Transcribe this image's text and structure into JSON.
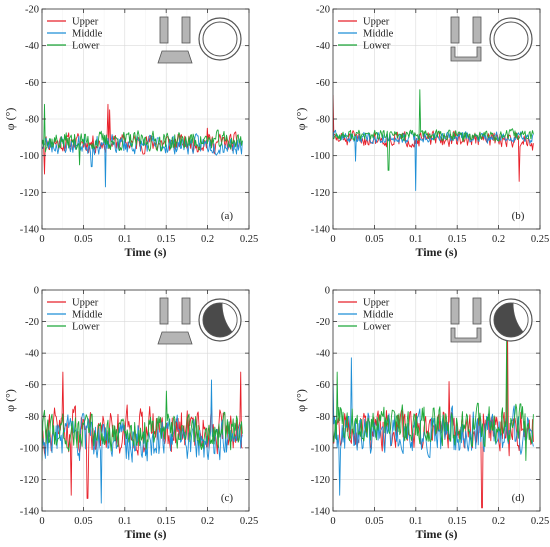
{
  "colors": {
    "upper": "#e8202a",
    "middle": "#1f8fd6",
    "lower": "#1fa83a",
    "grid": "#d9d9d9",
    "axis": "#333333",
    "icon_fill": "#b5b5b5",
    "icon_stroke": "#555555",
    "icon_dark": "#4a4a4a"
  },
  "chart_data": [
    {
      "type": "line",
      "panel_label": "(a)",
      "xlabel": "Time (s)",
      "ylabel": "φ (°)",
      "xlim": [
        0,
        0.25
      ],
      "ylim": [
        -140,
        -20
      ],
      "xticks": [
        0,
        0.05,
        0.1,
        0.15,
        0.2,
        0.25
      ],
      "xtick_labels": [
        "0",
        "0.05",
        "0.1",
        "0.15",
        "0.2",
        "0.25"
      ],
      "yticks": [
        -140,
        -120,
        -100,
        -80,
        -60,
        -40,
        -20
      ],
      "ytick_labels": [
        "-140",
        "-120",
        "-100",
        "-80",
        "-60",
        "-40",
        "-20"
      ],
      "grid": true,
      "legend_position": "top-left",
      "icon": "slots-bottom-plate-open-circle",
      "series": [
        {
          "name": "Upper",
          "key": "upper",
          "mean": -93,
          "noise": 5,
          "seed": 11,
          "spikes": [
            [
              0.08,
              -72
            ],
            [
              0.082,
              -75
            ],
            [
              0.003,
              -110
            ],
            [
              0.2,
              -85
            ]
          ]
        },
        {
          "name": "Middle",
          "key": "middle",
          "mean": -94,
          "noise": 5,
          "seed": 23,
          "spikes": [
            [
              0.077,
              -117
            ],
            [
              0.06,
              -106
            ]
          ]
        },
        {
          "name": "Lower",
          "key": "lower",
          "mean": -92,
          "noise": 5,
          "seed": 37,
          "spikes": [
            [
              0.003,
              -72
            ],
            [
              0.045,
              -105
            ]
          ]
        }
      ]
    },
    {
      "type": "line",
      "panel_label": "(b)",
      "xlabel": "Time (s)",
      "ylabel": "φ (°)",
      "xlim": [
        0,
        0.25
      ],
      "ylim": [
        -140,
        -20
      ],
      "xticks": [
        0,
        0.05,
        0.1,
        0.15,
        0.2,
        0.25
      ],
      "xtick_labels": [
        "0",
        "0.05",
        "0.1",
        "0.15",
        "0.2",
        "0.25"
      ],
      "yticks": [
        -140,
        -120,
        -100,
        -80,
        -60,
        -40,
        -20
      ],
      "ytick_labels": [
        "-140",
        "-120",
        "-100",
        "-80",
        "-60",
        "-40",
        "-20"
      ],
      "grid": true,
      "legend_position": "top-left",
      "icon": "slots-bottom-tray-open-circle",
      "series": [
        {
          "name": "Upper",
          "key": "upper",
          "mean": -91,
          "noise": 4,
          "seed": 51,
          "spikes": [
            [
              0.0,
              -67
            ],
            [
              0.225,
              -114
            ],
            [
              0.241,
              -97
            ]
          ]
        },
        {
          "name": "Middle",
          "key": "middle",
          "mean": -90,
          "noise": 3,
          "seed": 63,
          "spikes": [
            [
              0.1,
              -119
            ],
            [
              0.027,
              -103
            ]
          ]
        },
        {
          "name": "Lower",
          "key": "lower",
          "mean": -89,
          "noise": 3,
          "seed": 77,
          "spikes": [
            [
              0.105,
              -64
            ],
            [
              0.067,
              -108
            ],
            [
              0.244,
              -59
            ]
          ]
        }
      ]
    },
    {
      "type": "line",
      "panel_label": "(c)",
      "xlabel": "Time (s)",
      "ylabel": "φ (°)",
      "xlim": [
        0,
        0.25
      ],
      "ylim": [
        -140,
        0
      ],
      "xticks": [
        0,
        0.05,
        0.1,
        0.15,
        0.2,
        0.25
      ],
      "xtick_labels": [
        "0",
        "0.05",
        "0.1",
        "0.15",
        "0.2",
        "0.25"
      ],
      "yticks": [
        -140,
        -120,
        -100,
        -80,
        -60,
        -40,
        -20,
        0
      ],
      "ytick_labels": [
        "-140",
        "-120",
        "-100",
        "-80",
        "-60",
        "-40",
        "-20",
        "0"
      ],
      "grid": true,
      "legend_position": "top-left",
      "icon": "slots-bottom-plate-dark-circle",
      "series": [
        {
          "name": "Upper",
          "key": "upper",
          "mean": -88,
          "noise": 14,
          "seed": 91,
          "spikes": [
            [
              0.025,
              -52
            ],
            [
              0.035,
              -130
            ],
            [
              0.055,
              -132
            ],
            [
              0.24,
              -52
            ]
          ]
        },
        {
          "name": "Middle",
          "key": "middle",
          "mean": -95,
          "noise": 13,
          "seed": 103,
          "spikes": [
            [
              0.072,
              -135
            ],
            [
              0.205,
              -57
            ]
          ]
        },
        {
          "name": "Lower",
          "key": "lower",
          "mean": -90,
          "noise": 11,
          "seed": 117,
          "spikes": [
            [
              0.0,
              -108
            ],
            [
              0.15,
              -64
            ]
          ]
        }
      ]
    },
    {
      "type": "line",
      "panel_label": "(d)",
      "xlabel": "Time (s)",
      "ylabel": "φ (°)",
      "xlim": [
        0,
        0.25
      ],
      "ylim": [
        -140,
        0
      ],
      "xticks": [
        0,
        0.05,
        0.1,
        0.15,
        0.2,
        0.25
      ],
      "xtick_labels": [
        "0",
        "0.05",
        "0.1",
        "0.15",
        "0.2",
        "0.25"
      ],
      "yticks": [
        -140,
        -120,
        -100,
        -80,
        -60,
        -40,
        -20,
        0
      ],
      "ytick_labels": [
        "-140",
        "-120",
        "-100",
        "-80",
        "-60",
        "-40",
        "-20",
        "0"
      ],
      "grid": true,
      "legend_position": "top-left",
      "icon": "slots-bottom-tray-dark-circle",
      "series": [
        {
          "name": "Upper",
          "key": "upper",
          "mean": -88,
          "noise": 12,
          "seed": 131,
          "spikes": [
            [
              0.211,
              -22
            ],
            [
              0.213,
              -105
            ],
            [
              0.18,
              -138
            ],
            [
              0.14,
              -58
            ]
          ]
        },
        {
          "name": "Middle",
          "key": "middle",
          "mean": -90,
          "noise": 13,
          "seed": 149,
          "spikes": [
            [
              0.022,
              -43
            ],
            [
              0.0,
              -57
            ],
            [
              0.008,
              -130
            ]
          ]
        },
        {
          "name": "Lower",
          "key": "lower",
          "mean": -85,
          "noise": 12,
          "seed": 163,
          "spikes": [
            [
              0.005,
              -52
            ],
            [
              0.21,
              -30
            ],
            [
              0.233,
              -108
            ]
          ]
        }
      ]
    }
  ]
}
